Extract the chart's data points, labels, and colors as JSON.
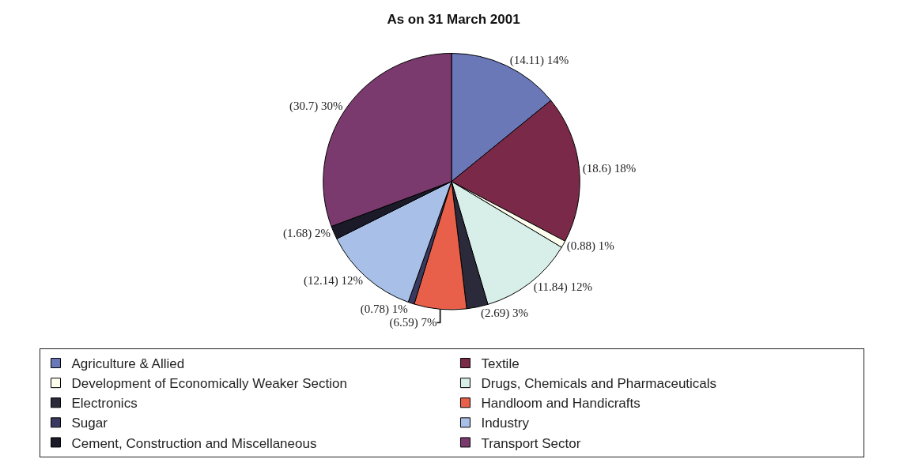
{
  "chart_data": {
    "type": "pie",
    "title": "As on 31 March 2001",
    "categories": [
      "Agriculture & Allied",
      "Textile",
      "Development of Economically Weaker Section",
      "Drugs, Chemicals and Pharmaceuticals",
      "Electronics",
      "Handloom and Handicrafts",
      "Sugar",
      "Industry",
      "Cement, Construction and Miscellaneous",
      "Transport Sector"
    ],
    "values": [
      14.11,
      18.6,
      0.88,
      11.84,
      2.69,
      6.59,
      0.78,
      12.14,
      1.68,
      30.7
    ],
    "colors": [
      "#6a78b8",
      "#7a2a48",
      "#fffff0",
      "#d8eee8",
      "#2a2a3a",
      "#e8604a",
      "#3a3a60",
      "#a8c0e8",
      "#1a1a28",
      "#7a3a6e"
    ],
    "value_labels": [
      "(14.11) 14%",
      "(18.6) 18%",
      "(0.88) 1%",
      "(11.84) 12%",
      "(2.69) 3%",
      "(6.59) 7%",
      "(0.78) 1%",
      "(12.14) 12%",
      "(1.68) 2%",
      "(30.7) 30%"
    ],
    "legend": "bottom"
  }
}
